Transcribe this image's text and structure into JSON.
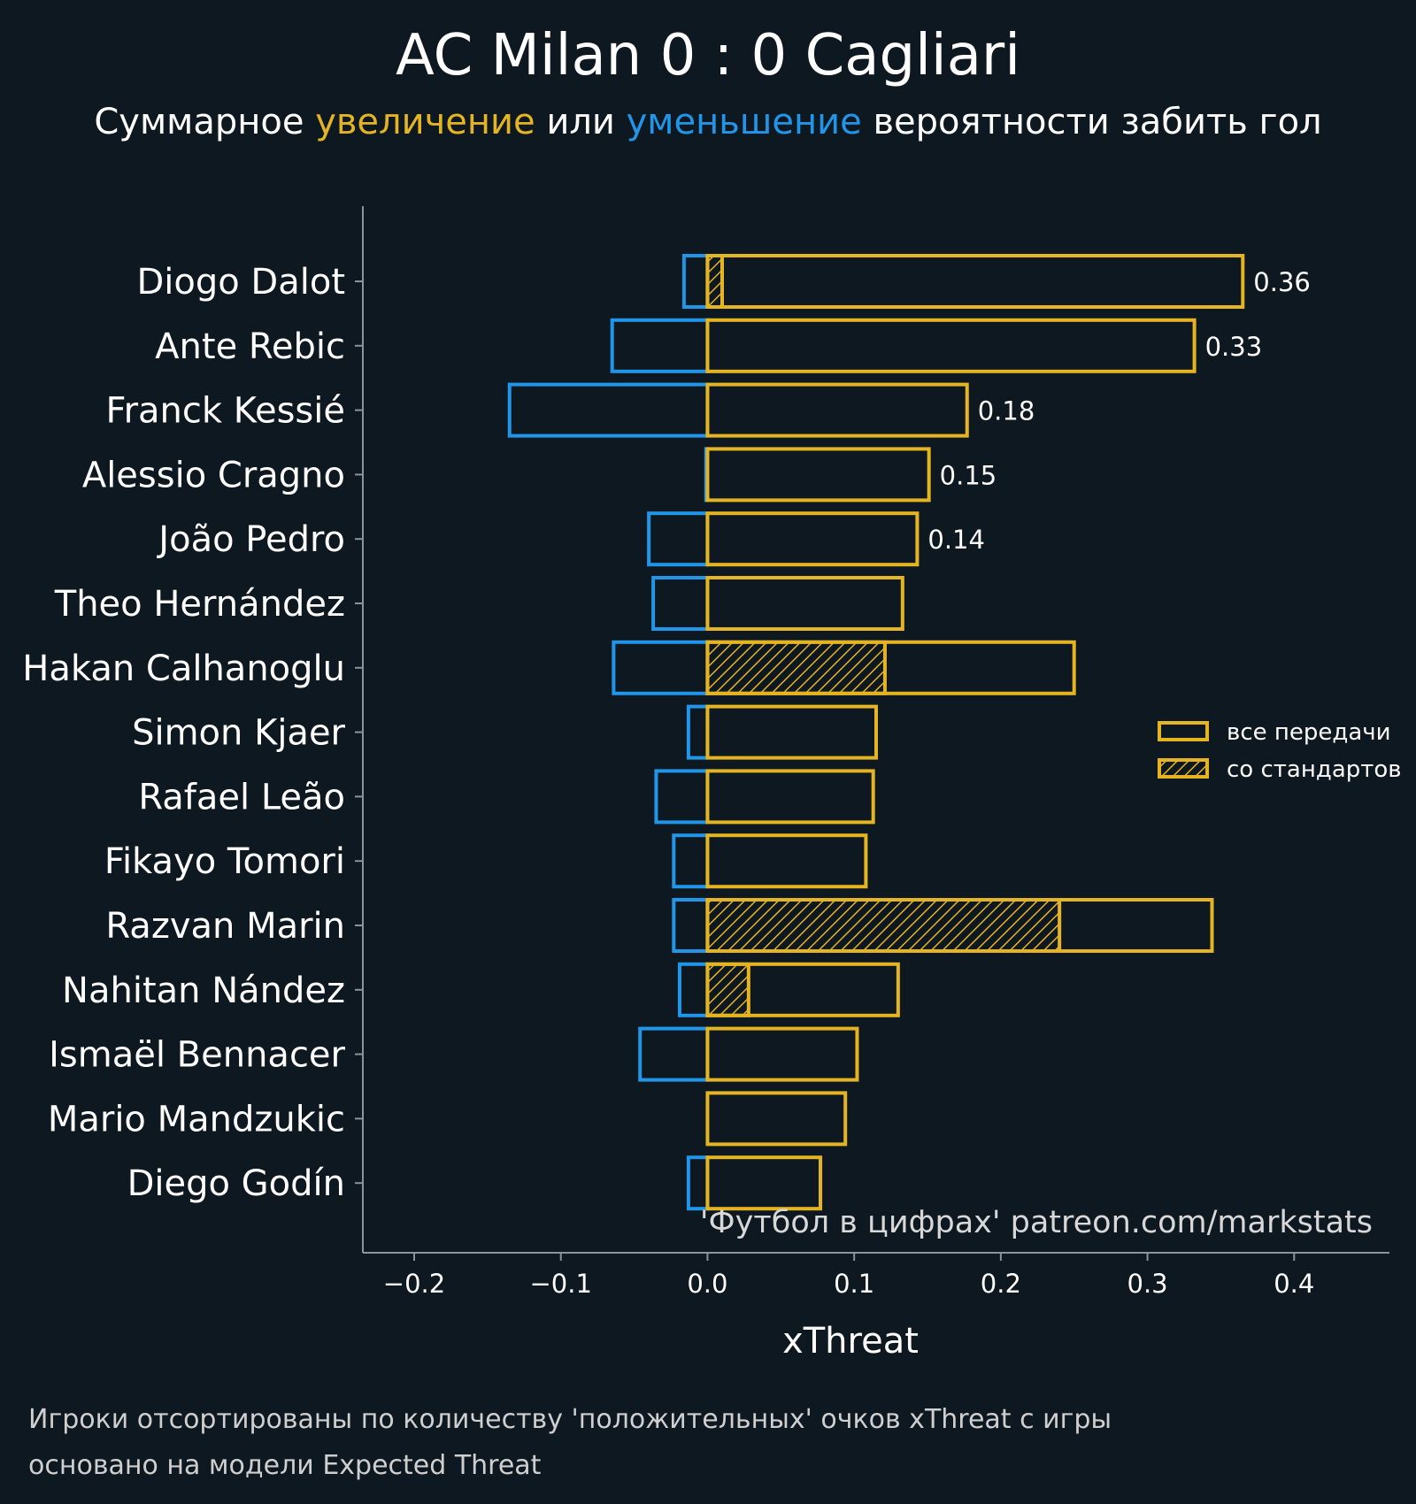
{
  "title": "AC Milan 0 : 0 Cagliari",
  "subtitle": {
    "part1": "Суммарное ",
    "positive_word": "увеличение",
    "part2": " или ",
    "negative_word": "уменьшение",
    "part3": " вероятности забить гол"
  },
  "colors": {
    "background": "#0e1821",
    "positive": "#e5b422",
    "negative": "#2196e8",
    "axis": "#8a949c"
  },
  "watermark": "'Футбол в цифрах' patreon.com/markstats",
  "footnote": {
    "line1": "Игроки отсортированы по количеству 'положительных' очков xThreat с игры",
    "line2": "основано на модели Expected Threat"
  },
  "chart_data": {
    "type": "bar",
    "orientation": "horizontal",
    "xlabel": "xThreat",
    "xlim": [
      -0.235,
      0.465
    ],
    "xticks": [
      -0.2,
      -0.1,
      0.0,
      0.1,
      0.2,
      0.3,
      0.4
    ],
    "xtick_labels": [
      "−0.2",
      "−0.1",
      "0.0",
      "0.1",
      "0.2",
      "0.3",
      "0.4"
    ],
    "legend": {
      "placement": "right",
      "items": [
        "все передачи",
        "со стандартов"
      ]
    },
    "categories": [
      "Diogo Dalot",
      "Ante Rebic",
      "Franck Kessié",
      "Alessio Cragno",
      "João Pedro",
      "Theo Hernández",
      "Hakan Calhanoglu",
      "Simon Kjaer",
      "Rafael Leão",
      "Fikayo Tomori",
      "Razvan Marin",
      "Nahitan Nández",
      "Ismaël Bennacer",
      "Mario Mandzukic",
      "Diego Godín"
    ],
    "series": [
      {
        "name": "все передачи (положительные)",
        "values": [
          0.365,
          0.332,
          0.177,
          0.151,
          0.143,
          0.133,
          0.25,
          0.115,
          0.113,
          0.108,
          0.344,
          0.13,
          0.102,
          0.094,
          0.077
        ]
      },
      {
        "name": "со стандартов",
        "values": [
          0.01,
          0.0,
          0.0,
          0.0,
          0.0,
          0.0,
          0.121,
          0.0,
          0.0,
          0.0,
          0.24,
          0.028,
          0.0,
          0.0,
          0.0
        ]
      },
      {
        "name": "все передачи (отрицательные)",
        "values": [
          -0.016,
          -0.065,
          -0.135,
          -0.001,
          -0.04,
          -0.037,
          -0.064,
          -0.013,
          -0.035,
          -0.023,
          -0.023,
          -0.019,
          -0.046,
          0.0,
          -0.013
        ]
      }
    ],
    "data_labels": [
      {
        "player": "Diogo Dalot",
        "text": "0.36"
      },
      {
        "player": "Ante Rebic",
        "text": "0.33"
      },
      {
        "player": "Franck Kessié",
        "text": "0.18"
      },
      {
        "player": "Alessio Cragno",
        "text": "0.15"
      },
      {
        "player": "João Pedro",
        "text": "0.14"
      }
    ]
  }
}
